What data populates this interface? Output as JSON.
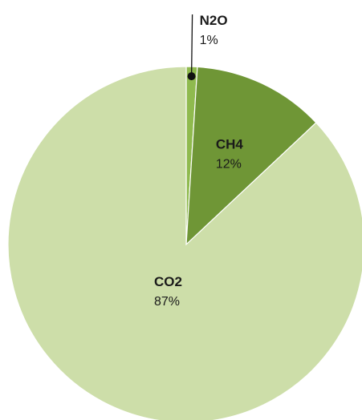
{
  "chart_data": {
    "type": "pie",
    "title": "",
    "start_angle_deg": 0,
    "direction": "clockwise",
    "slices": [
      {
        "label": "N2O",
        "value": 1,
        "value_label": "1%",
        "color": "#8fba4e",
        "label_mode": "callout"
      },
      {
        "label": "CH4",
        "value": 12,
        "value_label": "12%",
        "color": "#6f9636",
        "label_mode": "inside"
      },
      {
        "label": "CO2",
        "value": 87,
        "value_label": "87%",
        "color": "#cddea9",
        "label_mode": "inside"
      }
    ],
    "callout_color": "#111111"
  }
}
